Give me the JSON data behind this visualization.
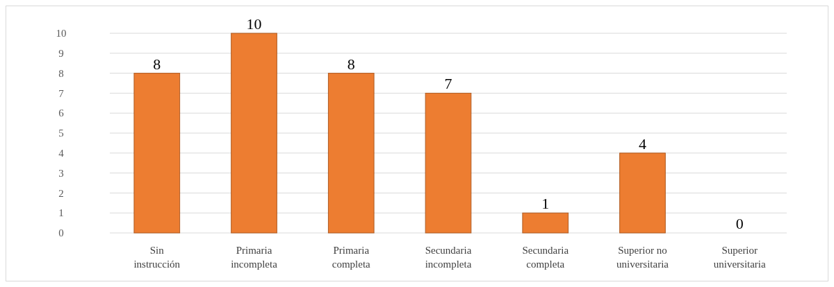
{
  "chart_data": {
    "type": "bar",
    "categories": [
      "Sin instrucción",
      "Primaria incompleta",
      "Primaria completa",
      "Secundaria incompleta",
      "Secundaria completa",
      "Superior no universitaria",
      "Superior universitaria"
    ],
    "values": [
      8,
      10,
      8,
      7,
      1,
      4,
      0
    ],
    "color": "#ed7d31",
    "ylim": [
      0,
      10
    ],
    "yticks": [
      0,
      1,
      2,
      3,
      4,
      5,
      6,
      7,
      8,
      9,
      10
    ],
    "grid": "y",
    "data_labels": true
  }
}
